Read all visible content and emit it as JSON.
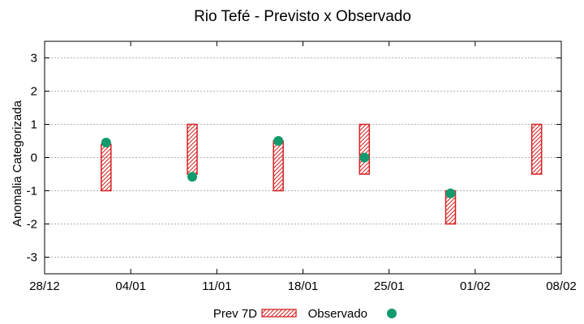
{
  "chart_data": {
    "type": "floating-bar-with-points",
    "title": "Rio Tefé - Previsto x Observado",
    "xlabel": "",
    "ylabel": "Anomalia Categorizada",
    "ylim": [
      -3.5,
      3.5
    ],
    "yticks": [
      -3,
      -2,
      -1,
      0,
      1,
      2,
      3
    ],
    "ytick_labels": [
      "-3",
      "-2",
      "-1",
      "0",
      "1",
      "2",
      "3"
    ],
    "xlim_days": [
      0,
      42
    ],
    "xticks": [
      {
        "day": 0,
        "label": "28/12"
      },
      {
        "day": 7,
        "label": "04/01"
      },
      {
        "day": 14,
        "label": "11/01"
      },
      {
        "day": 21,
        "label": "18/01"
      },
      {
        "day": 28,
        "label": "25/01"
      },
      {
        "day": 35,
        "label": "01/02"
      },
      {
        "day": 42,
        "label": "08/02"
      }
    ],
    "grid": true,
    "legend_position": "bottom-center",
    "colors": {
      "bar_stroke": "#d62020",
      "point": "#119a6e",
      "grid": "#b0b0b0"
    },
    "series": [
      {
        "name": "Prev 7D",
        "kind": "floating-bar",
        "points": [
          {
            "x_day": 5,
            "low": -1,
            "high": 0.4
          },
          {
            "x_day": 12,
            "low": -0.5,
            "high": 1
          },
          {
            "x_day": 19,
            "low": -1,
            "high": 0.5
          },
          {
            "x_day": 26,
            "low": -0.5,
            "high": 1
          },
          {
            "x_day": 33,
            "low": -2,
            "high": -1
          },
          {
            "x_day": 40,
            "low": -0.5,
            "high": 1
          }
        ]
      },
      {
        "name": "Observado",
        "kind": "scatter",
        "points": [
          {
            "x_day": 5,
            "y": 0.45
          },
          {
            "x_day": 12,
            "y": -0.58
          },
          {
            "x_day": 19,
            "y": 0.5
          },
          {
            "x_day": 26,
            "y": 0
          },
          {
            "x_day": 33,
            "y": -1.08
          }
        ]
      }
    ]
  }
}
